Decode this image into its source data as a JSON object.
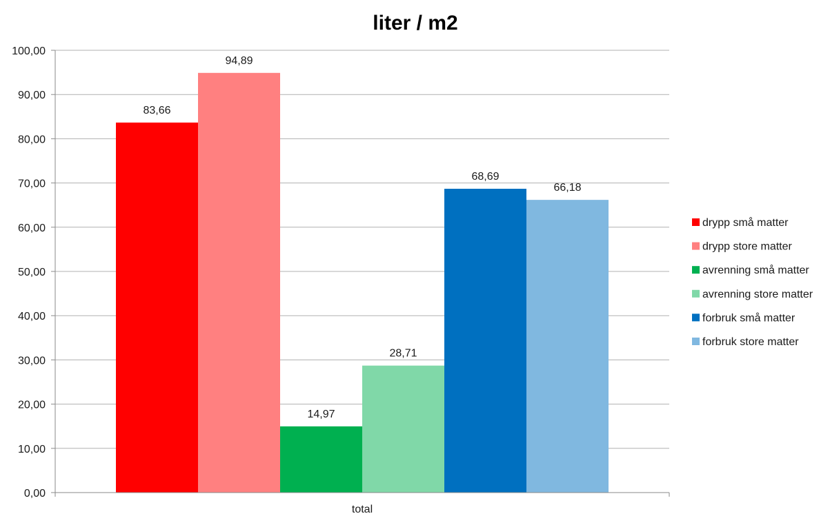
{
  "chart_data": {
    "type": "bar",
    "title": "liter / m2",
    "categories": [
      "total"
    ],
    "series": [
      {
        "name": "drypp små matter",
        "values": [
          83.66
        ],
        "label": "83,66",
        "color": "#ff0000"
      },
      {
        "name": "drypp store matter",
        "values": [
          94.89
        ],
        "label": "94,89",
        "color": "#ff8080"
      },
      {
        "name": "avrenning små matter",
        "values": [
          14.97
        ],
        "label": "14,97",
        "color": "#00b050"
      },
      {
        "name": "avrenning store matter",
        "values": [
          28.71
        ],
        "label": "28,71",
        "color": "#80d8a8"
      },
      {
        "name": "forbruk små matter",
        "values": [
          68.69
        ],
        "label": "68,69",
        "color": "#0070c0"
      },
      {
        "name": "forbruk store matter",
        "values": [
          66.18
        ],
        "label": "66,18",
        "color": "#80b8e0"
      }
    ],
    "yticks": [
      "0,00",
      "10,00",
      "20,00",
      "30,00",
      "40,00",
      "50,00",
      "60,00",
      "70,00",
      "80,00",
      "90,00",
      "100,00"
    ],
    "ylim": [
      0,
      100
    ],
    "xlabel": "",
    "ylabel": "",
    "grid": true,
    "legend": "right"
  }
}
